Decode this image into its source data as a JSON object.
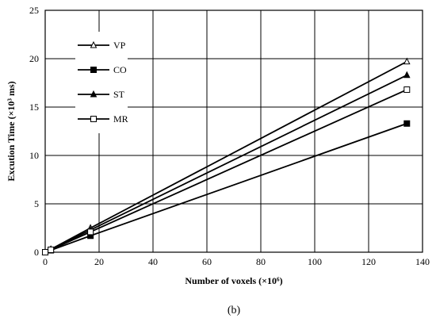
{
  "chart_data": {
    "type": "line",
    "xlabel": "Number of voxels (×10⁶)",
    "ylabel": "Excution Time (×10³ ms)",
    "caption": "(b)",
    "xlim": [
      0,
      140
    ],
    "ylim": [
      0,
      25
    ],
    "xticks": [
      "0",
      "20",
      "40",
      "60",
      "80",
      "100",
      "120",
      "140"
    ],
    "yticks": [
      "0",
      "5",
      "10",
      "15",
      "20",
      "25"
    ],
    "grid": true,
    "legend_position": "top-left inside",
    "series": [
      {
        "name": "VP",
        "marker": "triangle-open",
        "x": [
          0,
          2.1,
          16.8,
          134.2
        ],
        "y": [
          0,
          0.3,
          2.5,
          19.7
        ]
      },
      {
        "name": "CO",
        "marker": "square-filled",
        "x": [
          0,
          2.1,
          16.8,
          134.2
        ],
        "y": [
          0,
          0.2,
          1.7,
          13.3
        ]
      },
      {
        "name": "ST",
        "marker": "triangle-filled",
        "x": [
          0,
          2.1,
          16.8,
          134.2
        ],
        "y": [
          0,
          0.3,
          2.3,
          18.3
        ]
      },
      {
        "name": "MR",
        "marker": "square-open",
        "x": [
          0,
          2.1,
          16.8,
          134.2
        ],
        "y": [
          0,
          0.25,
          2.1,
          16.8
        ]
      }
    ]
  }
}
